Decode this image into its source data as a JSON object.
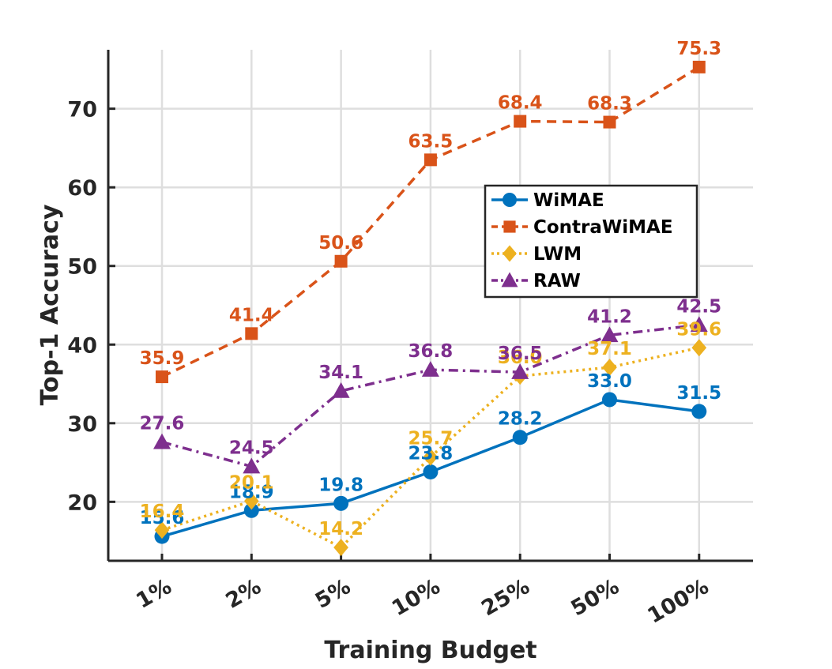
{
  "chart_data": {
    "type": "line",
    "title": "",
    "xlabel": "Training Budget",
    "ylabel": "Top-1 Accuracy",
    "categories": [
      "1%",
      "2%",
      "5%",
      "10%",
      "25%",
      "50%",
      "100%"
    ],
    "ylim": [
      12.5,
      77.5
    ],
    "yticks": [
      20,
      30,
      40,
      50,
      60,
      70
    ],
    "grid": true,
    "legend_position": "center-right",
    "series": [
      {
        "name": "WiMAE",
        "color": "#0072BD",
        "line_style": "solid",
        "marker": "circle",
        "values": [
          15.6,
          18.9,
          19.8,
          23.8,
          28.2,
          33.0,
          31.5
        ],
        "labels": [
          "15.6",
          "18.9",
          "19.8",
          "23.8",
          "28.2",
          "33.0",
          "31.5"
        ]
      },
      {
        "name": "ContraWiMAE",
        "color": "#D95319",
        "line_style": "dashed",
        "marker": "square",
        "values": [
          35.9,
          41.4,
          50.6,
          63.5,
          68.4,
          68.3,
          75.3
        ],
        "labels": [
          "35.9",
          "41.4",
          "50.6",
          "63.5",
          "68.4",
          "68.3",
          "75.3"
        ]
      },
      {
        "name": "LWM",
        "color": "#EDB120",
        "line_style": "dotted",
        "marker": "diamond",
        "values": [
          16.4,
          20.1,
          14.2,
          25.7,
          36.0,
          37.1,
          39.6
        ],
        "labels": [
          "16.4",
          "20.1",
          "14.2",
          "25.7",
          "36.0",
          "37.1",
          "39.6"
        ]
      },
      {
        "name": "RAW",
        "color": "#7E2F8E",
        "line_style": "dashdot",
        "marker": "triangle",
        "values": [
          27.6,
          24.5,
          34.1,
          36.8,
          36.5,
          41.2,
          42.5
        ],
        "labels": [
          "27.6",
          "24.5",
          "34.1",
          "36.8",
          "36.5",
          "41.2",
          "42.5"
        ]
      }
    ]
  }
}
